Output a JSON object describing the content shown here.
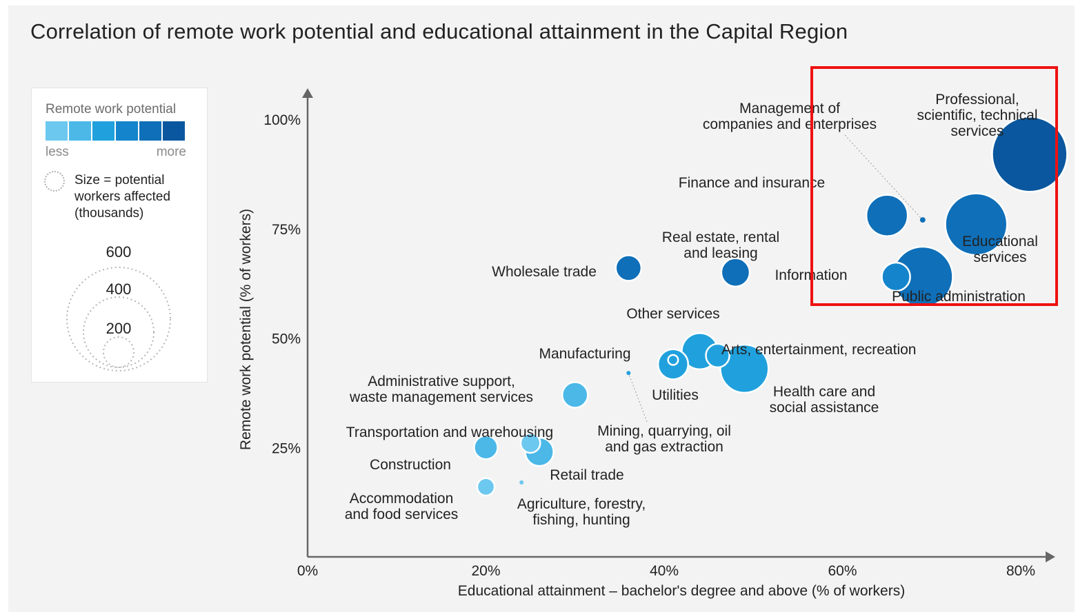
{
  "title": "Correlation of remote work potential and educational attainment in the Capital Region",
  "legend": {
    "title": "Remote work potential",
    "scale_colors": [
      "#6cc8ef",
      "#4bb8e8",
      "#20a1dd",
      "#1485cc",
      "#0f6fb8",
      "#0a579f"
    ],
    "less_label": "less",
    "more_label": "more",
    "size_label": "Size = potential\nworkers affected\n(thousands)",
    "size_values": [
      "600",
      "400",
      "200"
    ]
  },
  "chart_data": {
    "type": "scatter",
    "title": "Correlation of remote work potential and educational attainment in the Capital Region",
    "xlabel": "Educational attainment – bachelor's degree and above (% of workers)",
    "ylabel": "Remote work potential (% of workers)",
    "xlim": [
      0,
      80
    ],
    "ylim": [
      0,
      100
    ],
    "x_ticks": [
      "0%",
      "20%",
      "40%",
      "60%",
      "80%"
    ],
    "y_ticks": [
      "25%",
      "50%",
      "75%",
      "100%"
    ],
    "size_unit": "thousands of workers",
    "points": [
      {
        "label": "Professional, scientific, technical services",
        "x": 81,
        "y": 92,
        "size": 560,
        "shade": 5
      },
      {
        "label": "Management of companies and enterprises",
        "x": 69,
        "y": 77,
        "size": 3,
        "shade": 4
      },
      {
        "label": "Finance and insurance",
        "x": 65,
        "y": 78,
        "size": 170,
        "shade": 4
      },
      {
        "label": "Educational services",
        "x": 75,
        "y": 76,
        "size": 380,
        "shade": 4
      },
      {
        "label": "Public administration",
        "x": 69,
        "y": 64,
        "size": 360,
        "shade": 4
      },
      {
        "label": "Information",
        "x": 66,
        "y": 64,
        "size": 80,
        "shade": 3
      },
      {
        "label": "Real estate, rental and leasing",
        "x": 48,
        "y": 65,
        "size": 80,
        "shade": 4
      },
      {
        "label": "Wholesale trade",
        "x": 36,
        "y": 66,
        "size": 65,
        "shade": 4
      },
      {
        "label": "Other services",
        "x": 44,
        "y": 47,
        "size": 130,
        "shade": 2
      },
      {
        "label": "Arts, entertainment, recreation",
        "x": 46,
        "y": 46,
        "size": 55,
        "shade": 2
      },
      {
        "label": "Manufacturing",
        "x": 41,
        "y": 44,
        "size": 90,
        "shade": 2
      },
      {
        "label": "Utilities",
        "x": 41,
        "y": 45,
        "size": 10,
        "shade": 2
      },
      {
        "label": "Health care and social assistance",
        "x": 49,
        "y": 43,
        "size": 230,
        "shade": 2
      },
      {
        "label": "Mining, quarrying, oil and gas extraction",
        "x": 36,
        "y": 42,
        "size": 1,
        "shade": 2
      },
      {
        "label": "Administrative support, waste management services",
        "x": 30,
        "y": 37,
        "size": 65,
        "shade": 1
      },
      {
        "label": "Transportation and warehousing",
        "x": 25,
        "y": 26,
        "size": 38,
        "shade": 0
      },
      {
        "label": "Construction",
        "x": 20,
        "y": 25,
        "size": 55,
        "shade": 1
      },
      {
        "label": "Retail trade",
        "x": 26,
        "y": 24,
        "size": 80,
        "shade": 1
      },
      {
        "label": "Accommodation and food services",
        "x": 20,
        "y": 16,
        "size": 30,
        "shade": 0
      },
      {
        "label": "Agriculture, forestry, fishing, hunting",
        "x": 24,
        "y": 17,
        "size": 1,
        "shade": 0
      }
    ]
  }
}
